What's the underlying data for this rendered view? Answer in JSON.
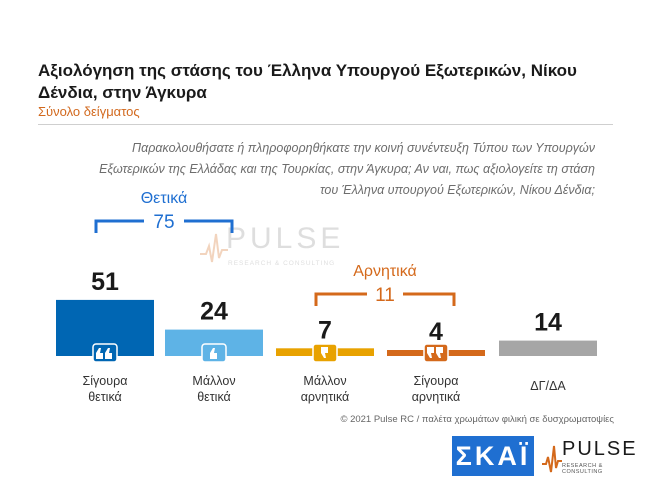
{
  "chart_data": {
    "type": "bar",
    "title": "Αξιολόγηση της στάσης του Έλληνα Υπουργού Εξωτερικών, Νίκου Δένδια, στην Άγκυρα",
    "subtitle": "Σύνολο δείγματος",
    "question": "Παρακολουθήσατε ή πληροφορηθήκατε την κοινή συνέντευξη Τύπου των Υπουργών Εξωτερικών της Ελλάδας και της Τουρκίας, στην Άγκυρα; Αν ναι, πως αξιολογείτε τη στάση του Έλληνα υπουργού Εξωτερικών, Νίκου Δένδια;",
    "categories": [
      "Σίγουρα θετικά",
      "Μάλλον θετικά",
      "Μάλλον αρνητικά",
      "Σίγουρα αρνητικά",
      "ΔΓ/ΔΑ"
    ],
    "values": [
      51,
      24,
      7,
      4,
      14
    ],
    "colors": [
      "#0066b3",
      "#5eb3e6",
      "#e8a200",
      "#d4691b",
      "#a6a6a6"
    ],
    "icons": [
      "double-thumbs-up-icon",
      "thumbs-up-icon",
      "thumbs-down-icon",
      "double-thumbs-down-icon",
      ""
    ],
    "groups": [
      {
        "label": "Θετικά",
        "value": 75,
        "color": "#1f6fd1"
      },
      {
        "label": "Αρνητικά",
        "value": 11,
        "color": "#d4691b"
      }
    ]
  },
  "watermark": {
    "text": "PULSE",
    "sub": "RESEARCH & CONSULTING"
  },
  "footer": {
    "copyright": "© 2021 Pulse RC   /   παλέτα χρωμάτων φιλική σε δυσχρωματοψίες"
  },
  "logos": {
    "skai": "ΣΚΑΪ",
    "pulse": "PULSE",
    "pulse_sub": "RESEARCH & CONSULTING"
  }
}
